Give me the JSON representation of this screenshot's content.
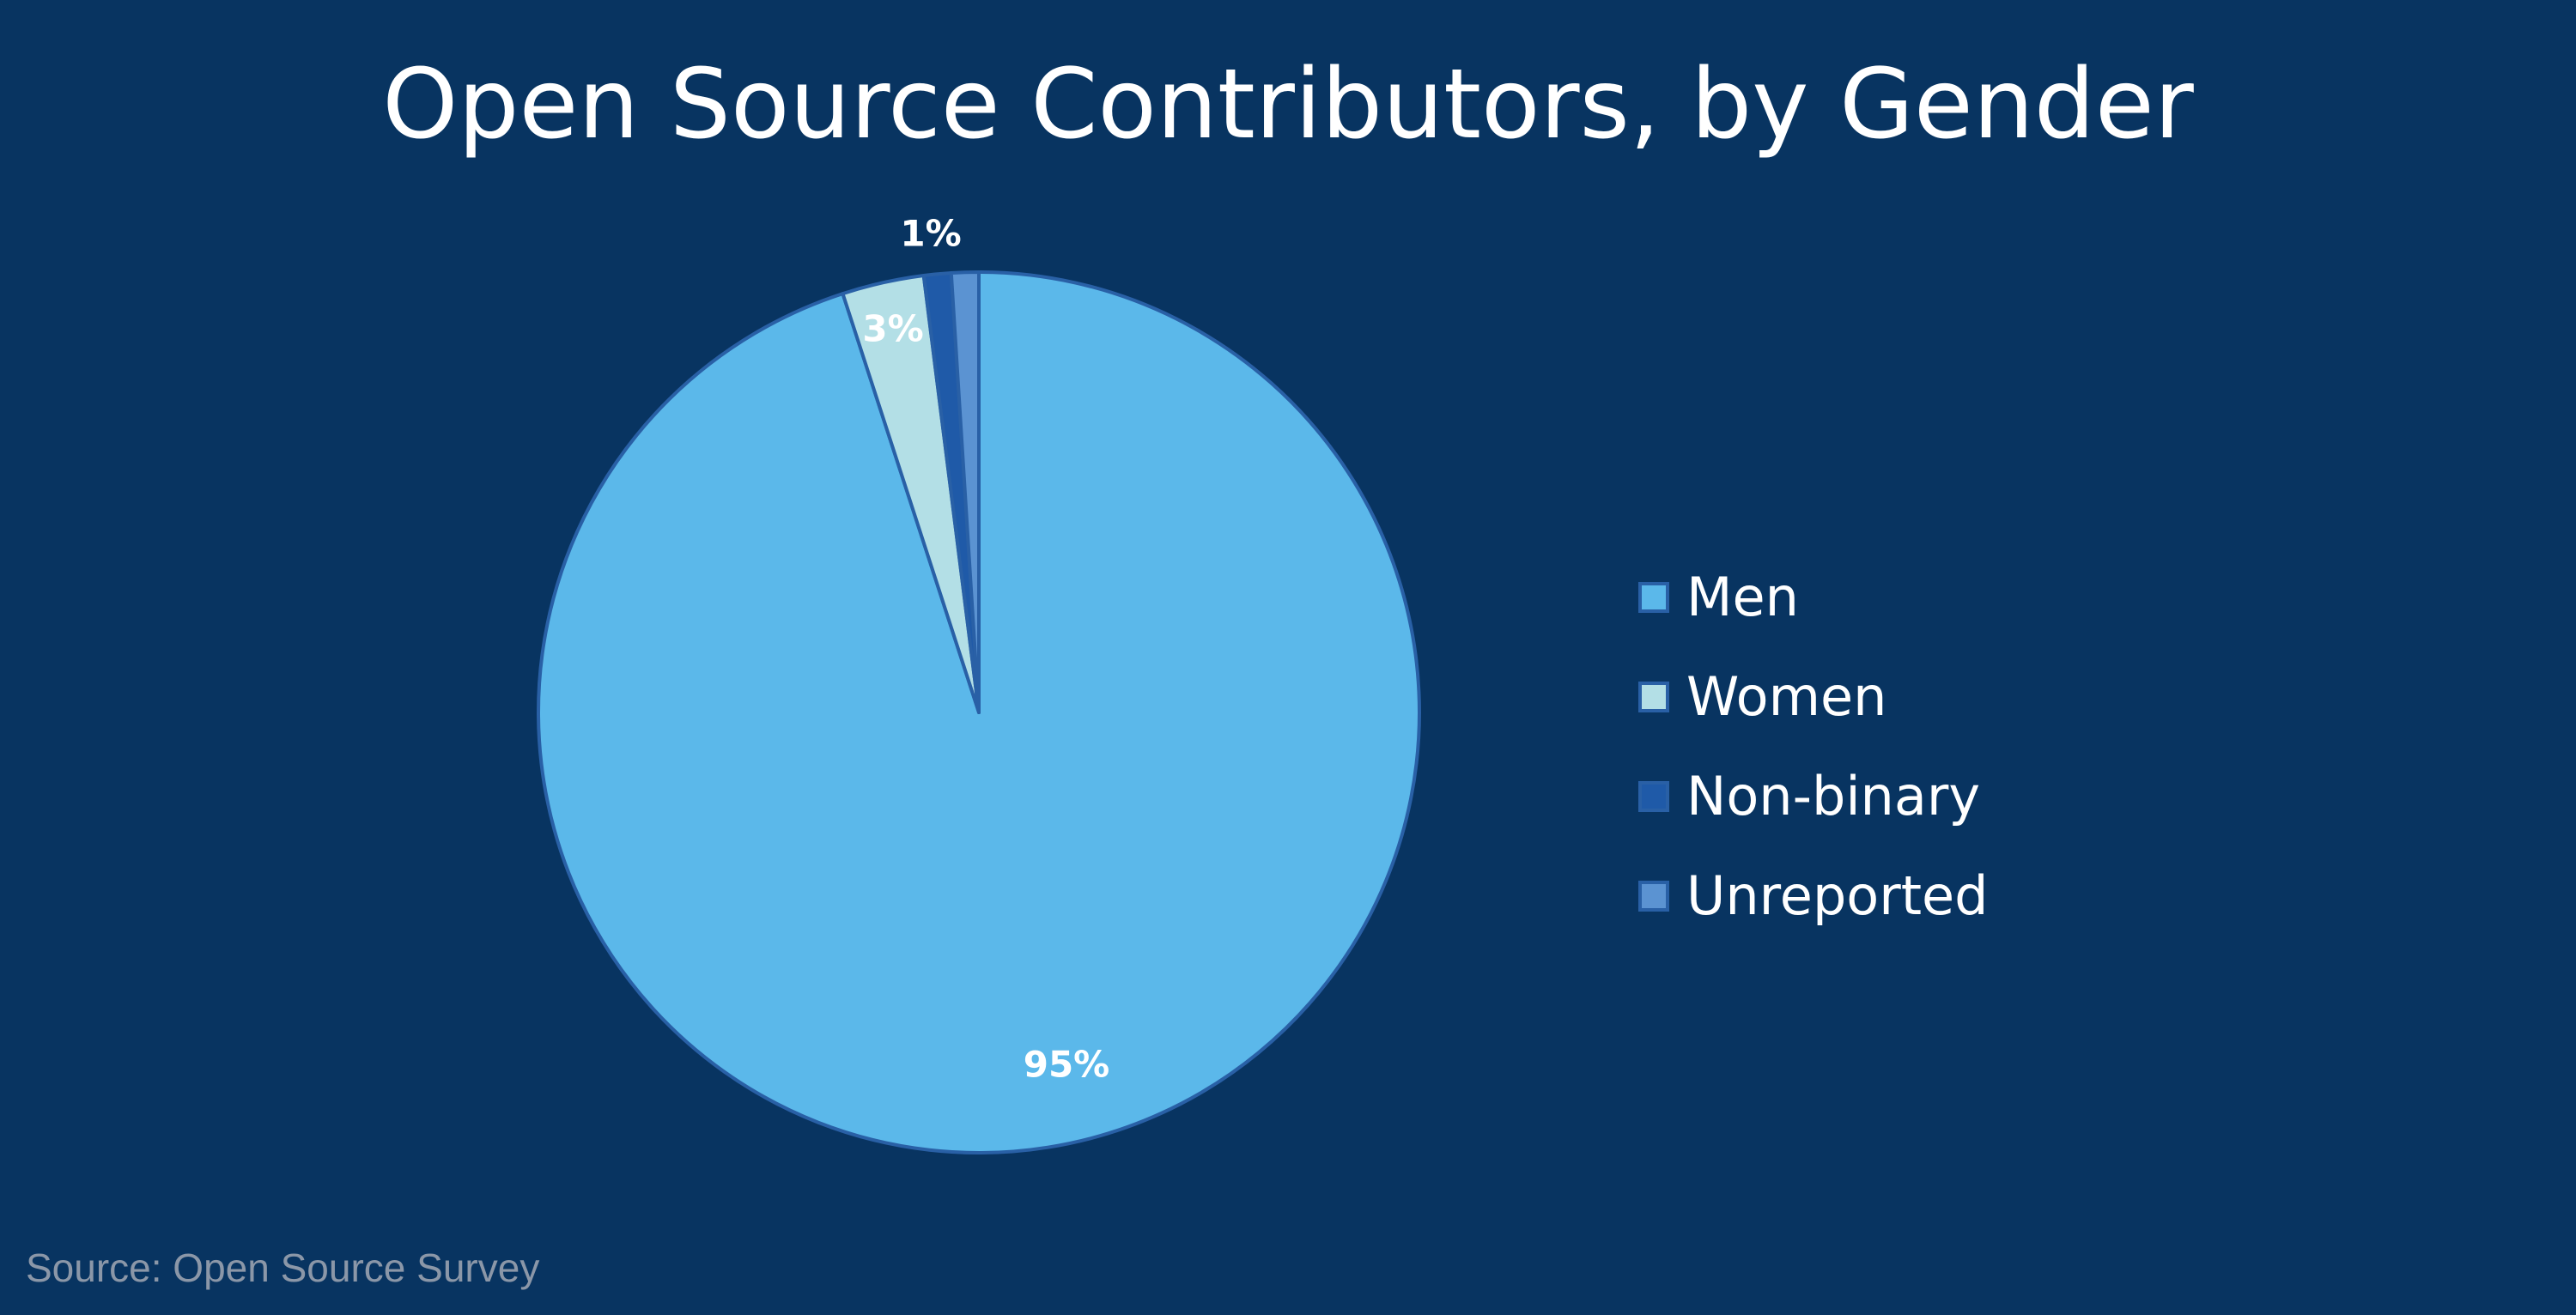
{
  "chart_data": {
    "type": "pie",
    "title": "Open Source Contributors, by Gender",
    "categories": [
      "Men",
      "Women",
      "Non-binary",
      "Unreported"
    ],
    "values": [
      95,
      3,
      1,
      1
    ],
    "data_labels": [
      "95%",
      "3%",
      "",
      "1%"
    ],
    "colors": [
      "#5bb8ea",
      "#b3dfe6",
      "#1f5aa8",
      "#5b93d2"
    ],
    "legend_position": "right",
    "start_angle_deg": 0,
    "direction": "clockwise"
  },
  "source": "Source: Open Source Survey",
  "theme": {
    "background": "#083461",
    "slice_border": "#2960a6"
  }
}
